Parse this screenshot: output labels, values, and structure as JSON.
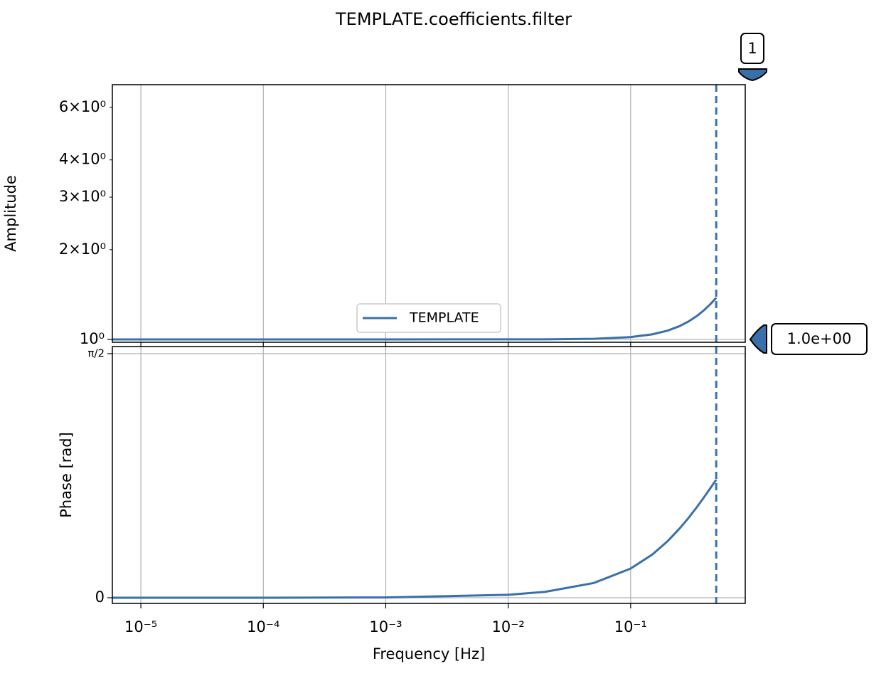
{
  "chart_data": [
    {
      "type": "line",
      "title": "TEMPLATE.coefficients.filter",
      "ylabel": "Amplitude",
      "xlog": true,
      "ylog": true,
      "x": [
        5.85e-06,
        1e-05,
        0.0001,
        0.001,
        0.01,
        0.02,
        0.05,
        0.1,
        0.15,
        0.2,
        0.25,
        0.3,
        0.35,
        0.4,
        0.45,
        0.5
      ],
      "series": [
        {
          "name": "TEMPLATE",
          "color": "#3a70aa",
          "values": [
            1.0,
            1.0,
            1.0,
            1.000002,
            1.00018,
            1.00072,
            1.0045,
            1.0179,
            1.0398,
            1.0698,
            1.1071,
            1.151,
            1.2009,
            1.256,
            1.3157,
            1.3793
          ]
        }
      ],
      "xlim": [
        5.85e-06,
        0.863
      ],
      "ylim": [
        0.978,
        7.15
      ],
      "xticks": [
        {
          "value": 1e-05,
          "label": "10⁻⁵"
        },
        {
          "value": 0.0001,
          "label": "10⁻⁴"
        },
        {
          "value": 0.001,
          "label": "10⁻³"
        },
        {
          "value": 0.01,
          "label": "10⁻²"
        },
        {
          "value": 0.1,
          "label": "10⁻¹"
        }
      ],
      "yticks": [
        {
          "value": 1,
          "label": "10⁰"
        }
      ],
      "yminorticks": [
        {
          "value": 2,
          "label": "2×10⁰"
        },
        {
          "value": 3,
          "label": "3×10⁰"
        },
        {
          "value": 4,
          "label": "4×10⁰"
        },
        {
          "value": 6,
          "label": "6×10⁰"
        }
      ],
      "grid": true,
      "legend": "lower center",
      "vline": 0.5,
      "annotations": [
        "1",
        "1.0e+00"
      ]
    },
    {
      "type": "line",
      "ylabel": "Phase [rad]",
      "xlabel": "Frequency [Hz]",
      "xlog": true,
      "ylog": false,
      "x": [
        5.85e-06,
        1e-05,
        0.0001,
        0.001,
        0.01,
        0.02,
        0.05,
        0.1,
        0.15,
        0.2,
        0.25,
        0.3,
        0.35,
        0.4,
        0.45,
        0.5
      ],
      "series": [
        {
          "name": "TEMPLATE",
          "color": "#3a70aa",
          "values": [
            1.11e-05,
            1.9e-05,
            0.00019,
            0.0019,
            0.019,
            0.038,
            0.0947,
            0.1878,
            0.2777,
            0.3633,
            0.4439,
            0.5178,
            0.5869,
            0.6499,
            0.7074,
            0.7598
          ]
        }
      ],
      "xlim": [
        5.85e-06,
        0.863
      ],
      "ylim": [
        -0.0366,
        1.6166
      ],
      "xticks": [
        {
          "value": 1e-05,
          "label": "10⁻⁵"
        },
        {
          "value": 0.0001,
          "label": "10⁻⁴"
        },
        {
          "value": 0.001,
          "label": "10⁻³"
        },
        {
          "value": 0.01,
          "label": "10⁻²"
        },
        {
          "value": 0.1,
          "label": "10⁻¹"
        }
      ],
      "yticks": [
        0,
        {
          "value": 1.5708,
          "label": "π/2"
        }
      ],
      "grid": true,
      "vline": 0.5
    }
  ]
}
